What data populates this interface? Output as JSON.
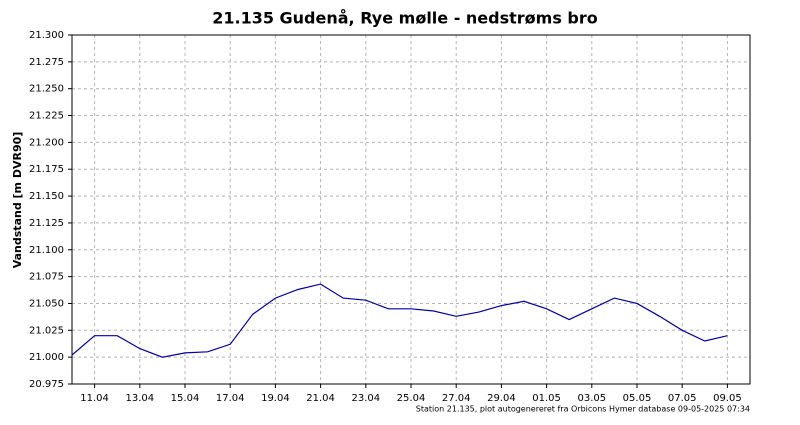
{
  "chart_data": {
    "type": "line",
    "title": "21.135  Gudenå, Rye mølle - nedstrøms bro",
    "y_label": "Vandstand [m DVR90]",
    "footer": "Station 21.135, plot autogenereret fra Orbicons Hymer database 09-05-2025 07:34",
    "x": [
      "10.04",
      "11.04",
      "12.04",
      "13.04",
      "14.04",
      "15.04",
      "16.04",
      "17.04",
      "18.04",
      "19.04",
      "20.04",
      "21.04",
      "22.04",
      "23.04",
      "24.04",
      "25.04",
      "26.04",
      "27.04",
      "28.04",
      "29.04",
      "30.04",
      "01.05",
      "02.05",
      "03.05",
      "04.05",
      "05.05",
      "06.05",
      "07.05",
      "08.05",
      "09.05"
    ],
    "series": [
      {
        "name": "Vandstand",
        "color": "#0000a0",
        "values": [
          21.002,
          21.02,
          21.02,
          21.008,
          21.0,
          21.004,
          21.005,
          21.012,
          21.04,
          21.055,
          21.063,
          21.068,
          21.055,
          21.053,
          21.045,
          21.045,
          21.043,
          21.038,
          21.042,
          21.048,
          21.052,
          21.045,
          21.035,
          21.045,
          21.055,
          21.05,
          21.038,
          21.025,
          21.015,
          21.02
        ]
      }
    ],
    "xlim": [
      "10.04",
      "10.05"
    ],
    "xticks": [
      "11.04",
      "13.04",
      "15.04",
      "17.04",
      "19.04",
      "21.04",
      "23.04",
      "25.04",
      "27.04",
      "29.04",
      "01.05",
      "03.05",
      "05.05",
      "07.05",
      "09.05"
    ],
    "ylim": [
      20.975,
      21.3
    ],
    "yticks": [
      20.975,
      {
        "value": 21.0,
        "label": "21.000"
      },
      21.025,
      {
        "value": 21.05,
        "label": "21.050"
      },
      21.075,
      {
        "value": 21.1,
        "label": "21.100"
      },
      21.125,
      {
        "value": 21.15,
        "label": "21.150"
      },
      21.175,
      {
        "value": 21.2,
        "label": "21.200"
      },
      21.225,
      {
        "value": 21.25,
        "label": "21.250"
      },
      21.275,
      {
        "value": 21.3,
        "label": "21.300"
      }
    ],
    "grid": true
  }
}
